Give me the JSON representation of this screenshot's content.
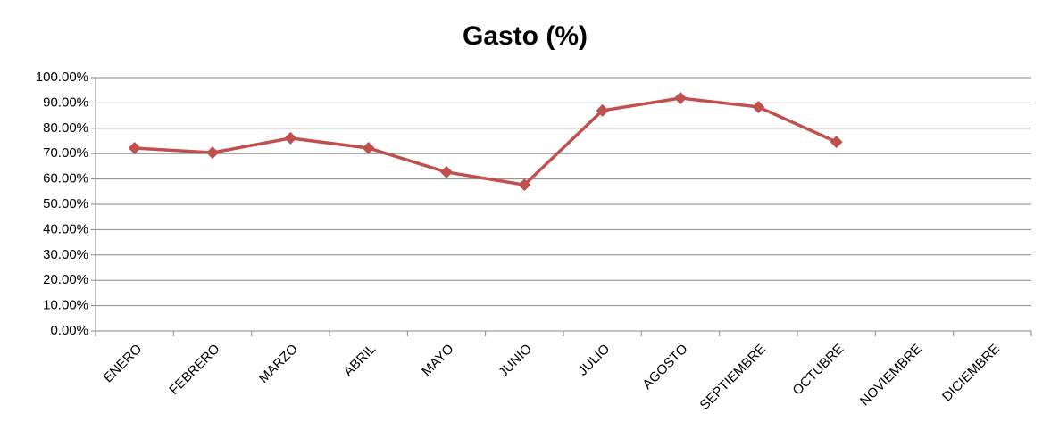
{
  "chart_data": {
    "type": "line",
    "title": "Gasto (%)",
    "categories": [
      "ENERO",
      "FEBRERO",
      "MARZO",
      "ABRIL",
      "MAYO",
      "JUNIO",
      "JULIO",
      "AGOSTO",
      "SEPTIEMBRE",
      "OCTUBRE",
      "NOVIEMBRE",
      "DICIEMBRE"
    ],
    "values": [
      72.2,
      70.4,
      76.1,
      72.2,
      62.7,
      57.7,
      87.0,
      91.9,
      88.4,
      74.6,
      null,
      null
    ],
    "color": "#c0504d",
    "ylim": [
      0,
      100
    ],
    "yticks": [
      {
        "value": 0,
        "label": "0.00%"
      },
      {
        "value": 10,
        "label": "10.00%"
      },
      {
        "value": 20,
        "label": "20.00%"
      },
      {
        "value": 30,
        "label": "30.00%"
      },
      {
        "value": 40,
        "label": "40.00%"
      },
      {
        "value": 50,
        "label": "50.00%"
      },
      {
        "value": 60,
        "label": "60.00%"
      },
      {
        "value": 70,
        "label": "70.00%"
      },
      {
        "value": 80,
        "label": "80.00%"
      },
      {
        "value": 90,
        "label": "90.00%"
      },
      {
        "value": 100,
        "label": "100.00%"
      }
    ],
    "grid": true
  }
}
